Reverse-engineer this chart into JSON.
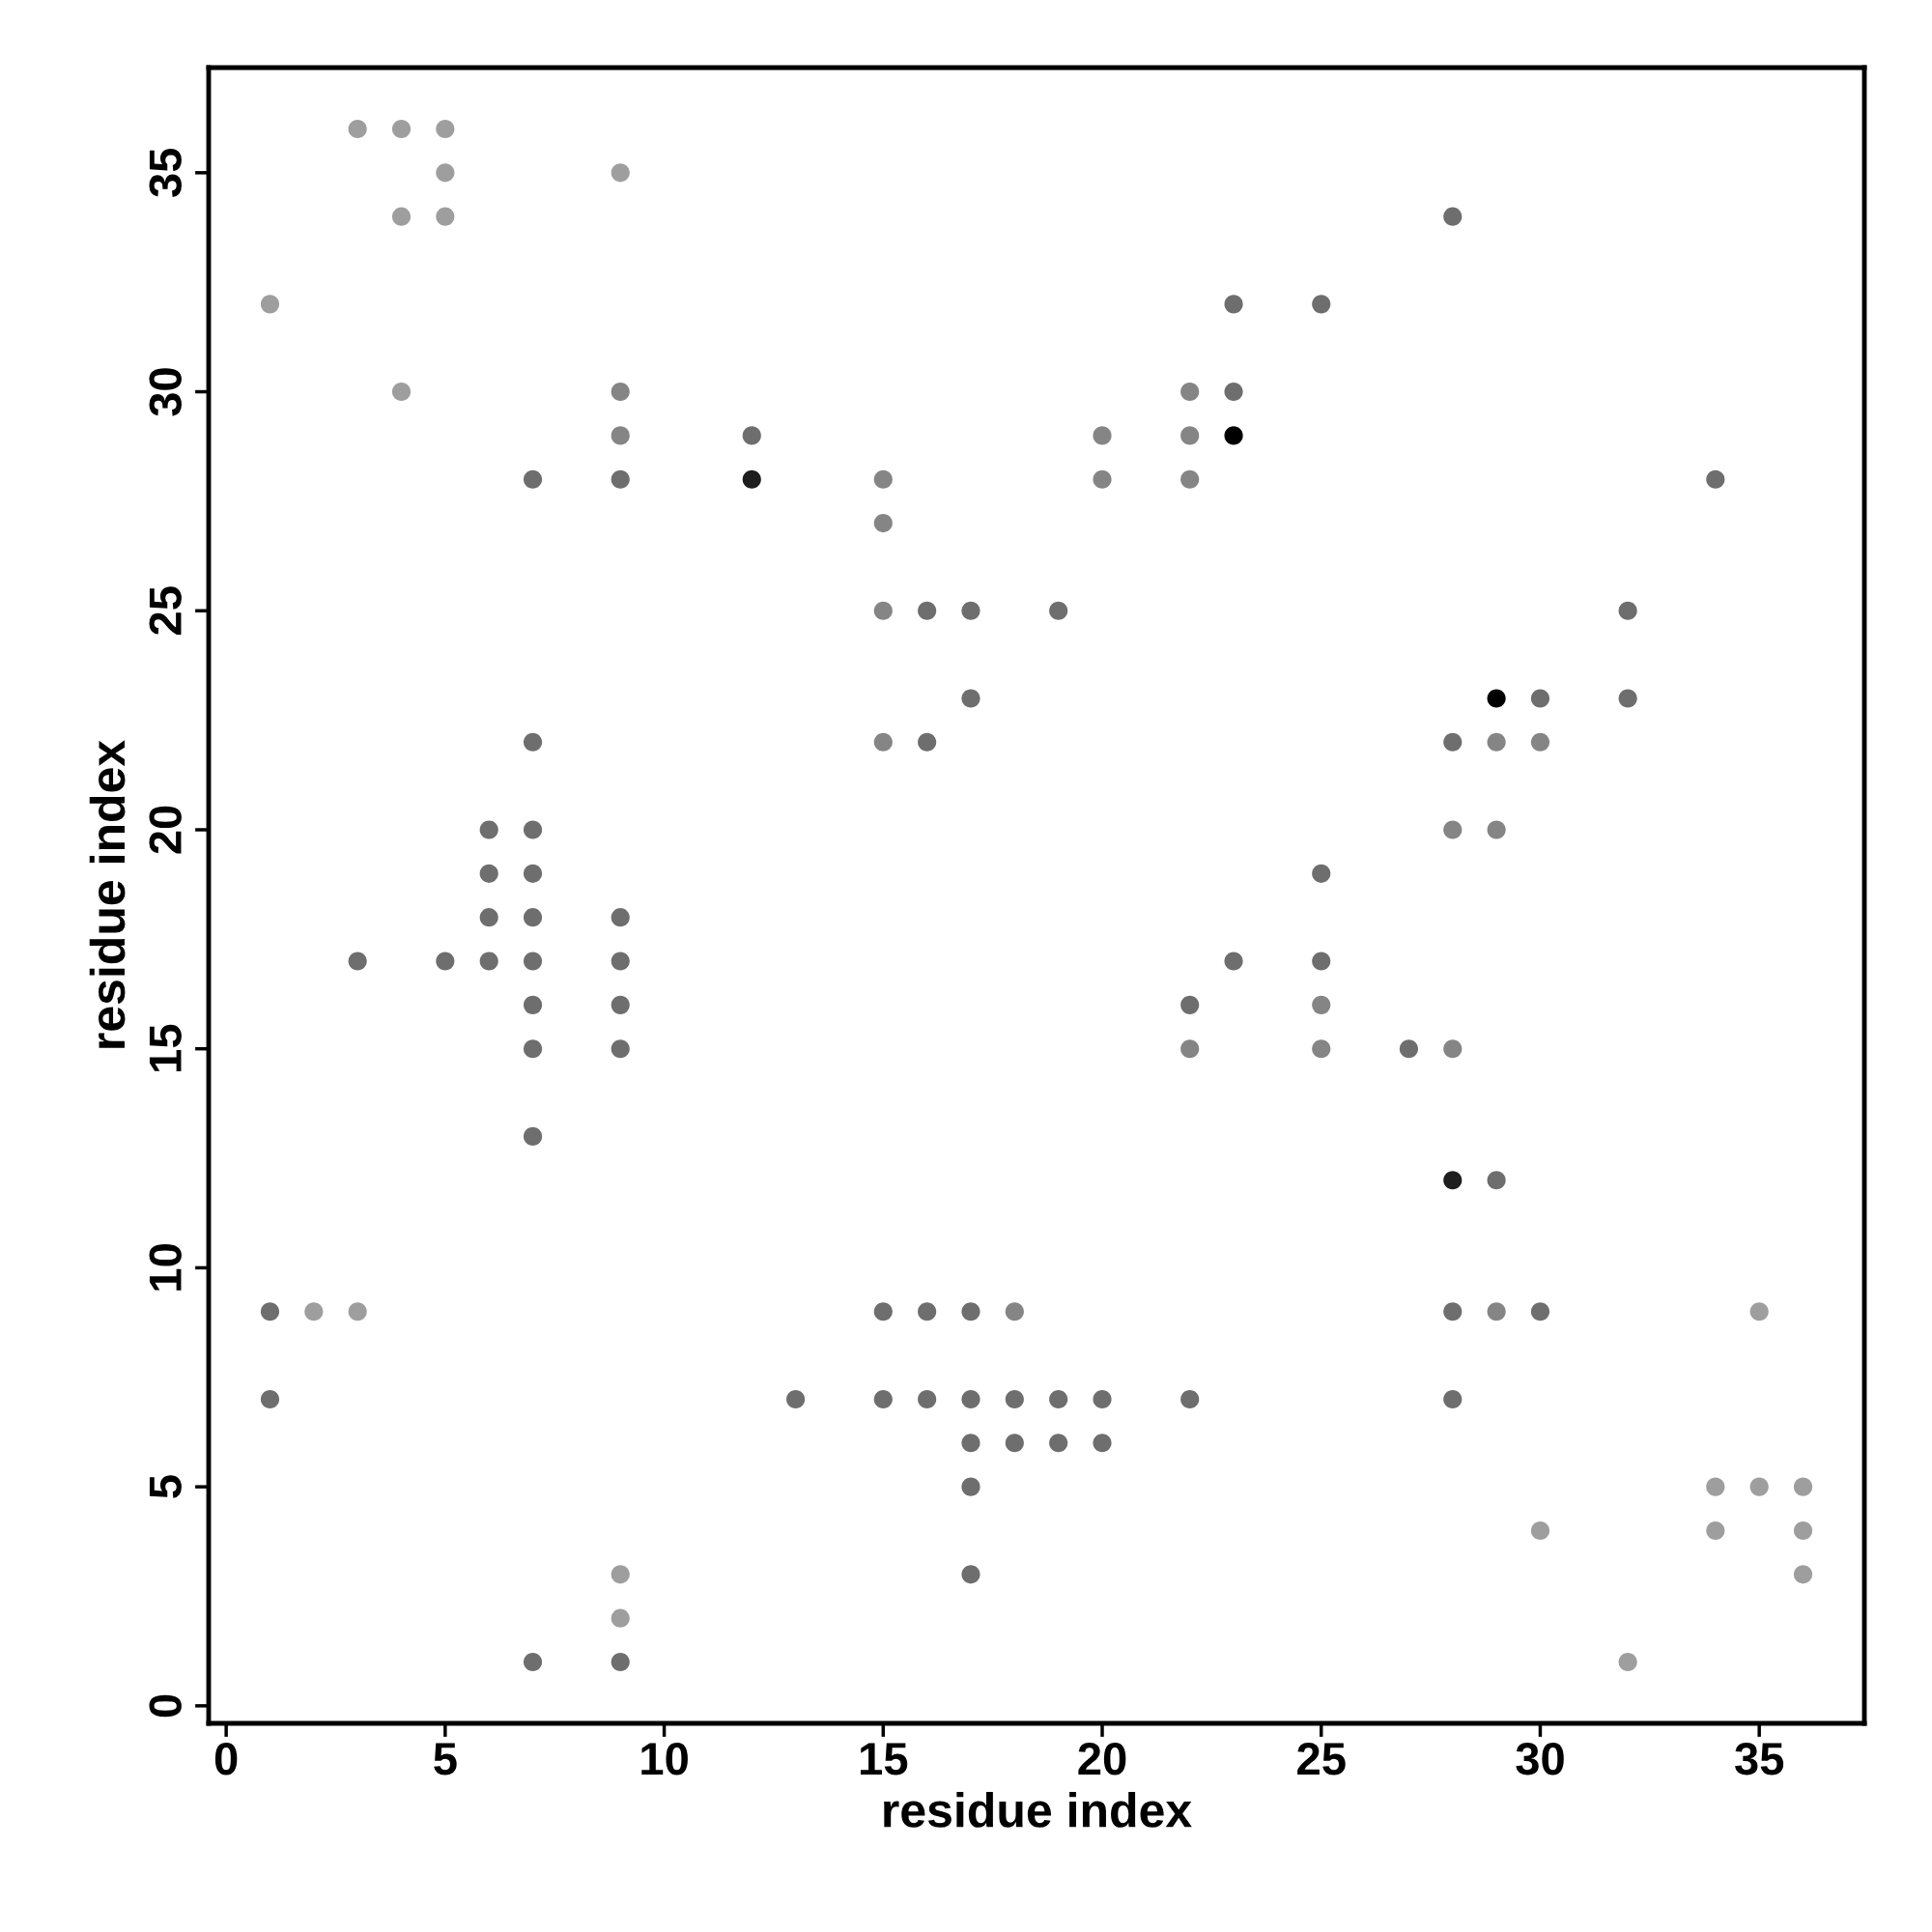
{
  "chart_data": {
    "type": "scatter",
    "xlabel": "residue index",
    "ylabel": "residue index",
    "xlim": [
      -0.4,
      37.4
    ],
    "ylim": [
      -0.4,
      37.4
    ],
    "xticks": [
      0,
      5,
      10,
      15,
      20,
      25,
      30,
      35
    ],
    "yticks": [
      0,
      5,
      10,
      15,
      20,
      25,
      30,
      35
    ],
    "grid": false,
    "marker": "circle",
    "x": [
      1,
      3,
      4,
      5,
      5,
      4,
      5,
      9,
      4,
      9,
      9,
      9,
      7,
      12,
      12,
      15,
      15,
      15,
      16,
      17,
      19,
      17,
      15,
      16,
      20,
      20,
      22,
      22,
      22,
      23,
      23,
      23,
      25,
      28,
      34,
      32,
      32,
      29,
      30,
      28,
      29,
      30,
      28,
      29,
      25,
      25,
      25,
      25,
      23,
      22,
      22,
      27,
      28,
      28,
      29,
      28,
      29,
      30,
      28,
      35,
      34,
      35,
      36,
      34,
      36,
      36,
      30,
      32,
      7,
      6,
      7,
      6,
      7,
      6,
      7,
      9,
      3,
      5,
      6,
      7,
      9,
      7,
      9,
      7,
      9,
      7,
      1,
      2,
      3,
      1,
      13,
      15,
      16,
      17,
      18,
      15,
      16,
      17,
      18,
      19,
      20,
      17,
      18,
      19,
      20,
      17,
      17,
      22,
      9,
      9,
      9,
      7
    ],
    "values": [
      32,
      36,
      36,
      36,
      35,
      34,
      34,
      35,
      30,
      30,
      29,
      28,
      28,
      29,
      28,
      28,
      27,
      25,
      25,
      25,
      25,
      23,
      22,
      22,
      29,
      28,
      30,
      29,
      28,
      32,
      30,
      29,
      32,
      34,
      28,
      25,
      23,
      23,
      23,
      22,
      22,
      22,
      20,
      20,
      19,
      17,
      16,
      15,
      17,
      16,
      15,
      15,
      15,
      12,
      12,
      9,
      9,
      9,
      7,
      9,
      5,
      5,
      5,
      4,
      4,
      3,
      4,
      1,
      22,
      20,
      20,
      19,
      19,
      18,
      18,
      18,
      17,
      17,
      17,
      17,
      17,
      16,
      16,
      15,
      15,
      13,
      9,
      9,
      9,
      7,
      7,
      9,
      9,
      9,
      9,
      7,
      7,
      7,
      7,
      7,
      7,
      6,
      6,
      6,
      6,
      5,
      3,
      7,
      3,
      2,
      1,
      1
    ],
    "colors": [
      "#9e9e9e",
      "#9e9e9e",
      "#9e9e9e",
      "#9e9e9e",
      "#9e9e9e",
      "#9e9e9e",
      "#9e9e9e",
      "#9e9e9e",
      "#9e9e9e",
      "#858585",
      "#858585",
      "#6e6e6e",
      "#6e6e6e",
      "#6e6e6e",
      "#1e1e1e",
      "#858585",
      "#858585",
      "#858585",
      "#6e6e6e",
      "#6e6e6e",
      "#6e6e6e",
      "#6e6e6e",
      "#858585",
      "#6e6e6e",
      "#858585",
      "#858585",
      "#858585",
      "#858585",
      "#858585",
      "#6e6e6e",
      "#6e6e6e",
      "#000000",
      "#6e6e6e",
      "#6e6e6e",
      "#6e6e6e",
      "#6e6e6e",
      "#6e6e6e",
      "#000000",
      "#6e6e6e",
      "#6e6e6e",
      "#858585",
      "#858585",
      "#858585",
      "#858585",
      "#6e6e6e",
      "#6e6e6e",
      "#858585",
      "#858585",
      "#6e6e6e",
      "#6e6e6e",
      "#858585",
      "#6e6e6e",
      "#858585",
      "#1e1e1e",
      "#6e6e6e",
      "#6e6e6e",
      "#858585",
      "#6e6e6e",
      "#6e6e6e",
      "#9e9e9e",
      "#9e9e9e",
      "#9e9e9e",
      "#9e9e9e",
      "#9e9e9e",
      "#9e9e9e",
      "#9e9e9e",
      "#9e9e9e",
      "#9e9e9e",
      "#6e6e6e",
      "#6e6e6e",
      "#6e6e6e",
      "#6e6e6e",
      "#6e6e6e",
      "#6e6e6e",
      "#6e6e6e",
      "#6e6e6e",
      "#6e6e6e",
      "#6e6e6e",
      "#6e6e6e",
      "#6e6e6e",
      "#6e6e6e",
      "#6e6e6e",
      "#6e6e6e",
      "#6e6e6e",
      "#6e6e6e",
      "#6e6e6e",
      "#6e6e6e",
      "#9e9e9e",
      "#9e9e9e",
      "#6e6e6e",
      "#6e6e6e",
      "#6e6e6e",
      "#6e6e6e",
      "#6e6e6e",
      "#858585",
      "#6e6e6e",
      "#6e6e6e",
      "#6e6e6e",
      "#6e6e6e",
      "#6e6e6e",
      "#6e6e6e",
      "#6e6e6e",
      "#6e6e6e",
      "#6e6e6e",
      "#6e6e6e",
      "#6e6e6e",
      "#6e6e6e",
      "#6e6e6e",
      "#9e9e9e",
      "#9e9e9e",
      "#6e6e6e",
      "#6e6e6e"
    ]
  }
}
